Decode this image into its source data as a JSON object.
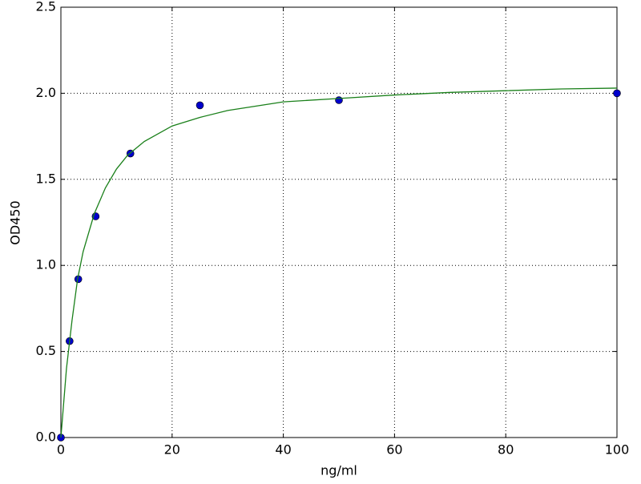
{
  "chart_data": {
    "type": "scatter",
    "xlabel": "ng/ml",
    "ylabel": "OD450",
    "xlim": [
      0,
      100
    ],
    "ylim": [
      0,
      2.5
    ],
    "xticks": [
      0,
      20,
      40,
      60,
      80,
      100
    ],
    "yticks": [
      {
        "value": 0,
        "label": "0.0"
      },
      0.5,
      {
        "value": 1,
        "label": "1.0"
      },
      1.5,
      {
        "value": 2,
        "label": "2.0"
      },
      2.5
    ],
    "grid": true,
    "series": [
      {
        "type": "scatter",
        "color": "#0000cc",
        "x": [
          0,
          1.5625,
          3.125,
          6.25,
          12.5,
          25,
          50,
          100
        ],
        "values": [
          0,
          0.56,
          0.92,
          1.285,
          1.65,
          1.93,
          1.96,
          2.0
        ]
      },
      {
        "type": "line",
        "color": "#1a801a",
        "x": [
          0,
          1,
          2,
          3,
          4,
          6,
          8,
          10,
          12,
          15,
          20,
          25,
          30,
          40,
          50,
          60,
          70,
          80,
          90,
          100
        ],
        "values": [
          0,
          0.4,
          0.68,
          0.92,
          1.08,
          1.3,
          1.45,
          1.56,
          1.64,
          1.72,
          1.81,
          1.86,
          1.9,
          1.95,
          1.97,
          1.99,
          2.005,
          2.015,
          2.025,
          2.03
        ]
      }
    ]
  }
}
